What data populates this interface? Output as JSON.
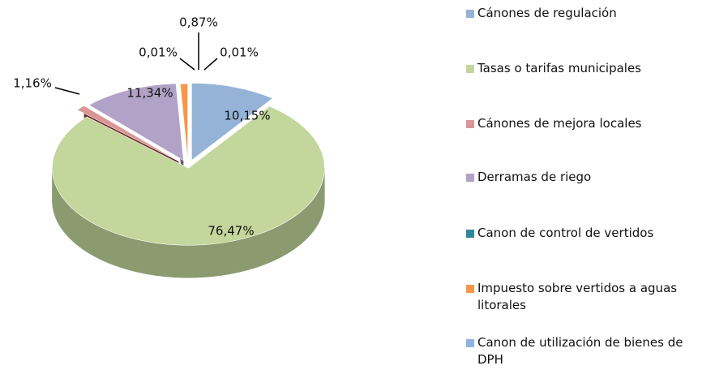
{
  "chart_data": {
    "type": "pie3d",
    "categories": [
      "Cánones de regulación",
      "Tasas o tarifas municipales",
      "Cánones de mejora locales",
      "Derramas de riego",
      "Canon de control de vertidos",
      "Impuesto sobre vertidos a aguas litorales",
      "Canon de utilización de bienes de DPH"
    ],
    "values": [
      10.15,
      76.47,
      1.16,
      11.34,
      0.01,
      0.87,
      0.01
    ],
    "value_labels": [
      "10,15%",
      "76,47%",
      "1,16%",
      "11,34%",
      "0,01%",
      "0,87%",
      "0,01%"
    ],
    "colors": [
      "#95b3d7",
      "#c3d69b",
      "#d99694",
      "#b3a2c7",
      "#31859c",
      "#f79646",
      "#8eb4e3"
    ],
    "legend": "right"
  }
}
